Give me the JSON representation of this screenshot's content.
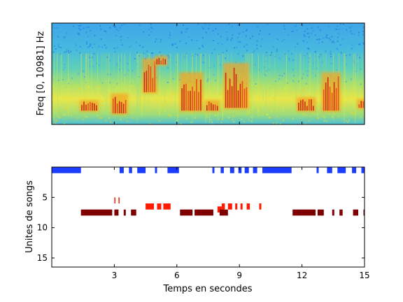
{
  "chart_data": [
    {
      "type": "heatmap",
      "ylabel": "Freq [0, 10981] Hz",
      "xlim": [
        0,
        15
      ],
      "ylim": [
        0,
        10981
      ],
      "colormap": "jet",
      "background_intensity": "low-mid (cyan/blue) at high frequencies, yellow-green at low frequencies",
      "hot_regions": [
        {
          "x": [
            1.4,
            2.2
          ],
          "y": [
            1500,
            2500
          ],
          "level": "high"
        },
        {
          "x": [
            2.9,
            3.6
          ],
          "y": [
            1200,
            3200
          ],
          "level": "high"
        },
        {
          "x": [
            4.4,
            5.0
          ],
          "y": [
            3500,
            7000
          ],
          "level": "high"
        },
        {
          "x": [
            5.0,
            5.5
          ],
          "y": [
            6500,
            7300
          ],
          "level": "high"
        },
        {
          "x": [
            6.2,
            7.2
          ],
          "y": [
            1500,
            5500
          ],
          "level": "high"
        },
        {
          "x": [
            7.4,
            8.0
          ],
          "y": [
            1500,
            2500
          ],
          "level": "high"
        },
        {
          "x": [
            8.3,
            9.4
          ],
          "y": [
            1800,
            6500
          ],
          "level": "high"
        },
        {
          "x": [
            11.8,
            12.6
          ],
          "y": [
            1500,
            2800
          ],
          "level": "high"
        },
        {
          "x": [
            13.0,
            13.8
          ],
          "y": [
            1500,
            5500
          ],
          "level": "high"
        },
        {
          "x": [
            14.7,
            15.0
          ],
          "y": [
            1800,
            2600
          ],
          "level": "high"
        }
      ]
    },
    {
      "type": "scatter",
      "xlabel": "Temps en secondes",
      "ylabel": "Unites de songs",
      "xlim": [
        0,
        15
      ],
      "ylim": [
        16.5,
        0
      ],
      "xticks": [
        3,
        6,
        9,
        12,
        15
      ],
      "yticks": [
        5,
        10,
        15
      ],
      "series": [
        {
          "color": "#1a3dff",
          "row": 0,
          "segments": [
            [
              0,
              1.4
            ],
            [
              3.25,
              3.45
            ],
            [
              3.7,
              3.85
            ],
            [
              4.1,
              4.5
            ],
            [
              4.95,
              5.05
            ],
            [
              5.55,
              6.1
            ],
            [
              7.7,
              7.8
            ],
            [
              8.1,
              8.25
            ],
            [
              8.55,
              8.75
            ],
            [
              8.95,
              9.1
            ],
            [
              9.25,
              9.45
            ],
            [
              9.65,
              9.85
            ],
            [
              10.1,
              11.5
            ],
            [
              12.7,
              12.8
            ],
            [
              13.2,
              13.45
            ],
            [
              13.7,
              14.1
            ],
            [
              14.4,
              14.6
            ],
            [
              14.85,
              15.0
            ]
          ]
        },
        {
          "color": "#ff1a00",
          "row": 5,
          "segments": [
            [
              3.0,
              3.05
            ],
            [
              3.2,
              3.25
            ]
          ]
        },
        {
          "color": "#ff1a00",
          "row": 6,
          "segments": [
            [
              4.5,
              4.9
            ],
            [
              5.05,
              5.25
            ],
            [
              5.35,
              5.7
            ],
            [
              8.15,
              8.3
            ],
            [
              8.45,
              8.65
            ],
            [
              8.8,
              8.9
            ],
            [
              9.05,
              9.15
            ],
            [
              9.35,
              9.5
            ],
            [
              9.95,
              10.05
            ]
          ]
        },
        {
          "color": "#ff1a00",
          "row": 6.5,
          "segments": [
            [
              7.95,
              8.15
            ]
          ]
        },
        {
          "color": "#7f0000",
          "row": 7,
          "segments": [
            [
              1.4,
              2.9
            ],
            [
              3.0,
              3.2
            ],
            [
              3.45,
              3.55
            ],
            [
              3.8,
              4.05
            ],
            [
              6.15,
              6.75
            ],
            [
              6.85,
              7.75
            ],
            [
              8.05,
              8.45
            ],
            [
              11.55,
              12.65
            ],
            [
              12.75,
              13.05
            ],
            [
              13.45,
              13.55
            ],
            [
              13.8,
              13.95
            ],
            [
              14.45,
              14.7
            ],
            [
              14.95,
              15.05
            ]
          ]
        }
      ]
    }
  ]
}
